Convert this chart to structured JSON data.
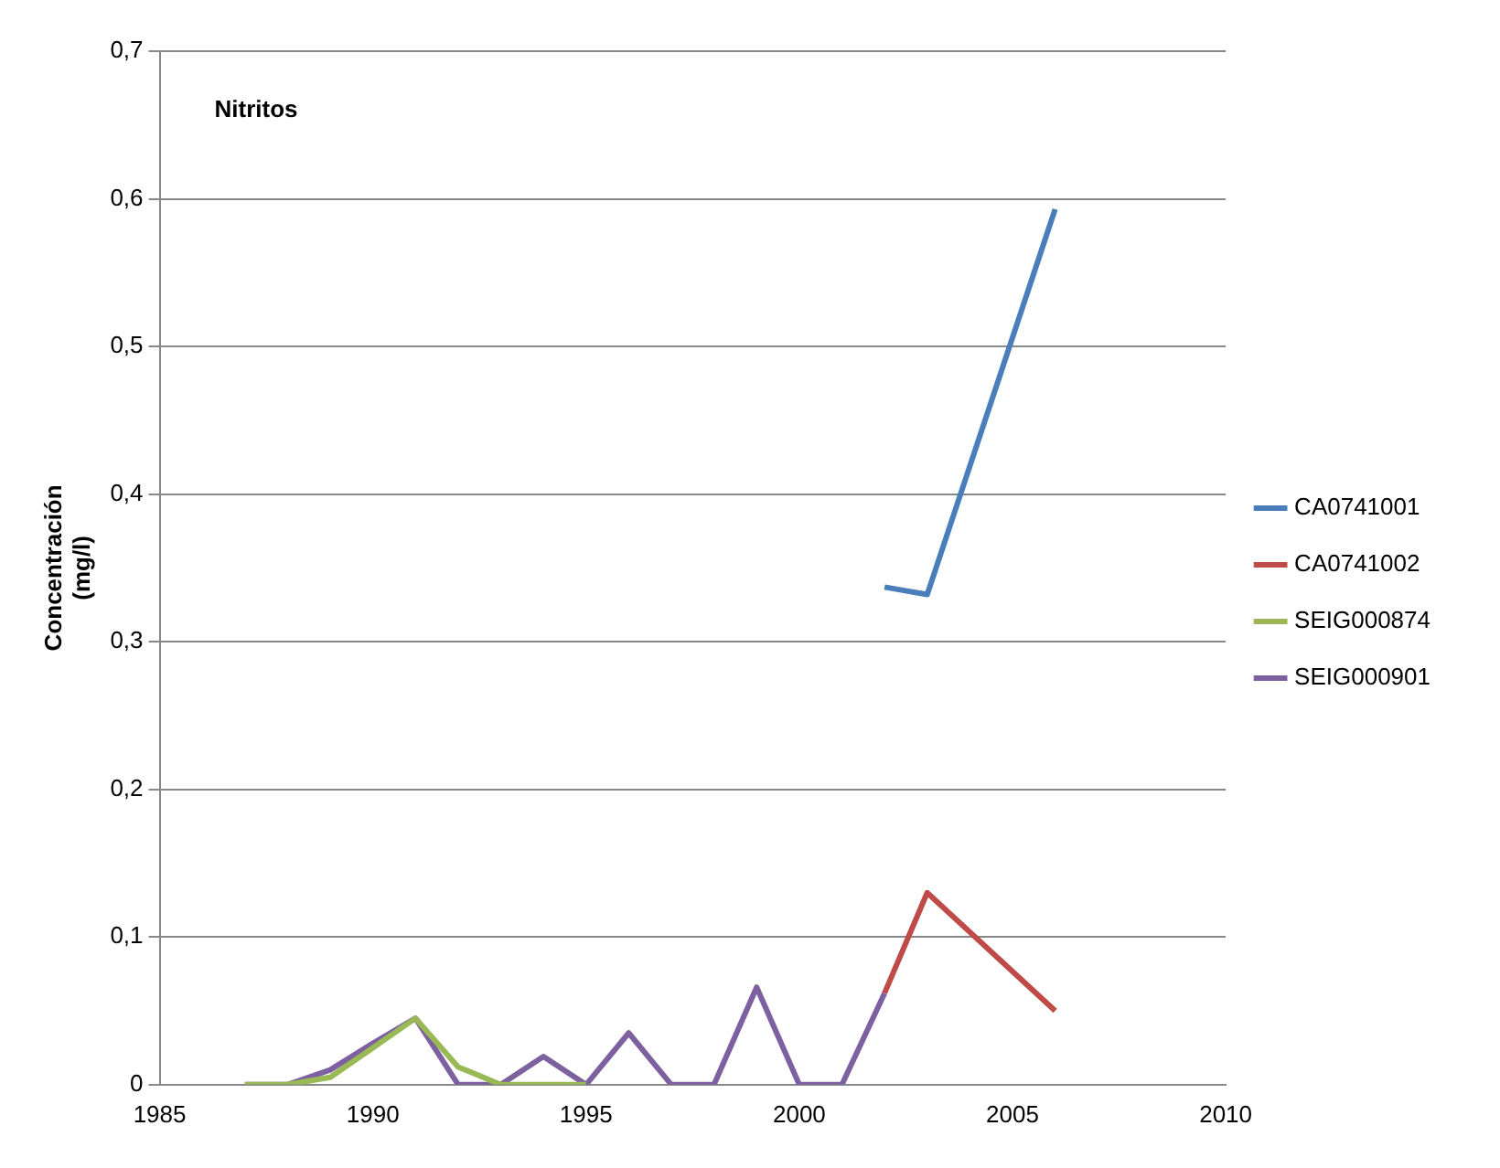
{
  "chart_data": {
    "type": "line",
    "title": "Nitritos",
    "ylabel": "Concentración (mg/l)",
    "xlim": [
      1985,
      2010
    ],
    "xticks": [
      1985,
      1990,
      1995,
      2000,
      2005,
      2010
    ],
    "ylim": [
      0,
      0.7
    ],
    "yticks": [
      {
        "value": 0,
        "label": "0"
      },
      {
        "value": 0.1,
        "label": "0,1"
      },
      {
        "value": 0.2,
        "label": "0,2"
      },
      {
        "value": 0.3,
        "label": "0,3"
      },
      {
        "value": 0.4,
        "label": "0,4"
      },
      {
        "value": 0.5,
        "label": "0,5"
      },
      {
        "value": 0.6,
        "label": "0,6"
      },
      {
        "value": 0.7,
        "label": "0,7"
      }
    ],
    "grid": "y",
    "legend": "right",
    "marker": "none",
    "line_style": "solid",
    "series": [
      {
        "name": "CA0741001",
        "color": "#4a7ebb",
        "x": [
          2002,
          2003,
          2006
        ],
        "values": [
          0.337,
          0.332,
          0.593
        ]
      },
      {
        "name": "CA0741002",
        "color": "#be4b48",
        "x": [
          2002,
          2003,
          2006
        ],
        "values": [
          0.062,
          0.13,
          0.05
        ]
      },
      {
        "name": "SEIG000874",
        "color": "#98b954",
        "x": [
          1987,
          1988,
          1989,
          1990,
          1991,
          1992,
          1993,
          1994,
          1995
        ],
        "values": [
          0,
          0,
          0.005,
          0.025,
          0.045,
          0.012,
          0,
          0,
          0
        ]
      },
      {
        "name": "SEIG000901",
        "color": "#7d60a0",
        "x": [
          1987,
          1988,
          1989,
          1990,
          1991,
          1992,
          1993,
          1994,
          1995,
          1996,
          1997,
          1998,
          1999,
          2000,
          2001,
          2002
        ],
        "values": [
          0,
          0,
          0.01,
          0.028,
          0.045,
          0,
          0,
          0.019,
          0,
          0.035,
          0,
          0,
          0.066,
          0,
          0,
          0.062
        ]
      }
    ]
  }
}
